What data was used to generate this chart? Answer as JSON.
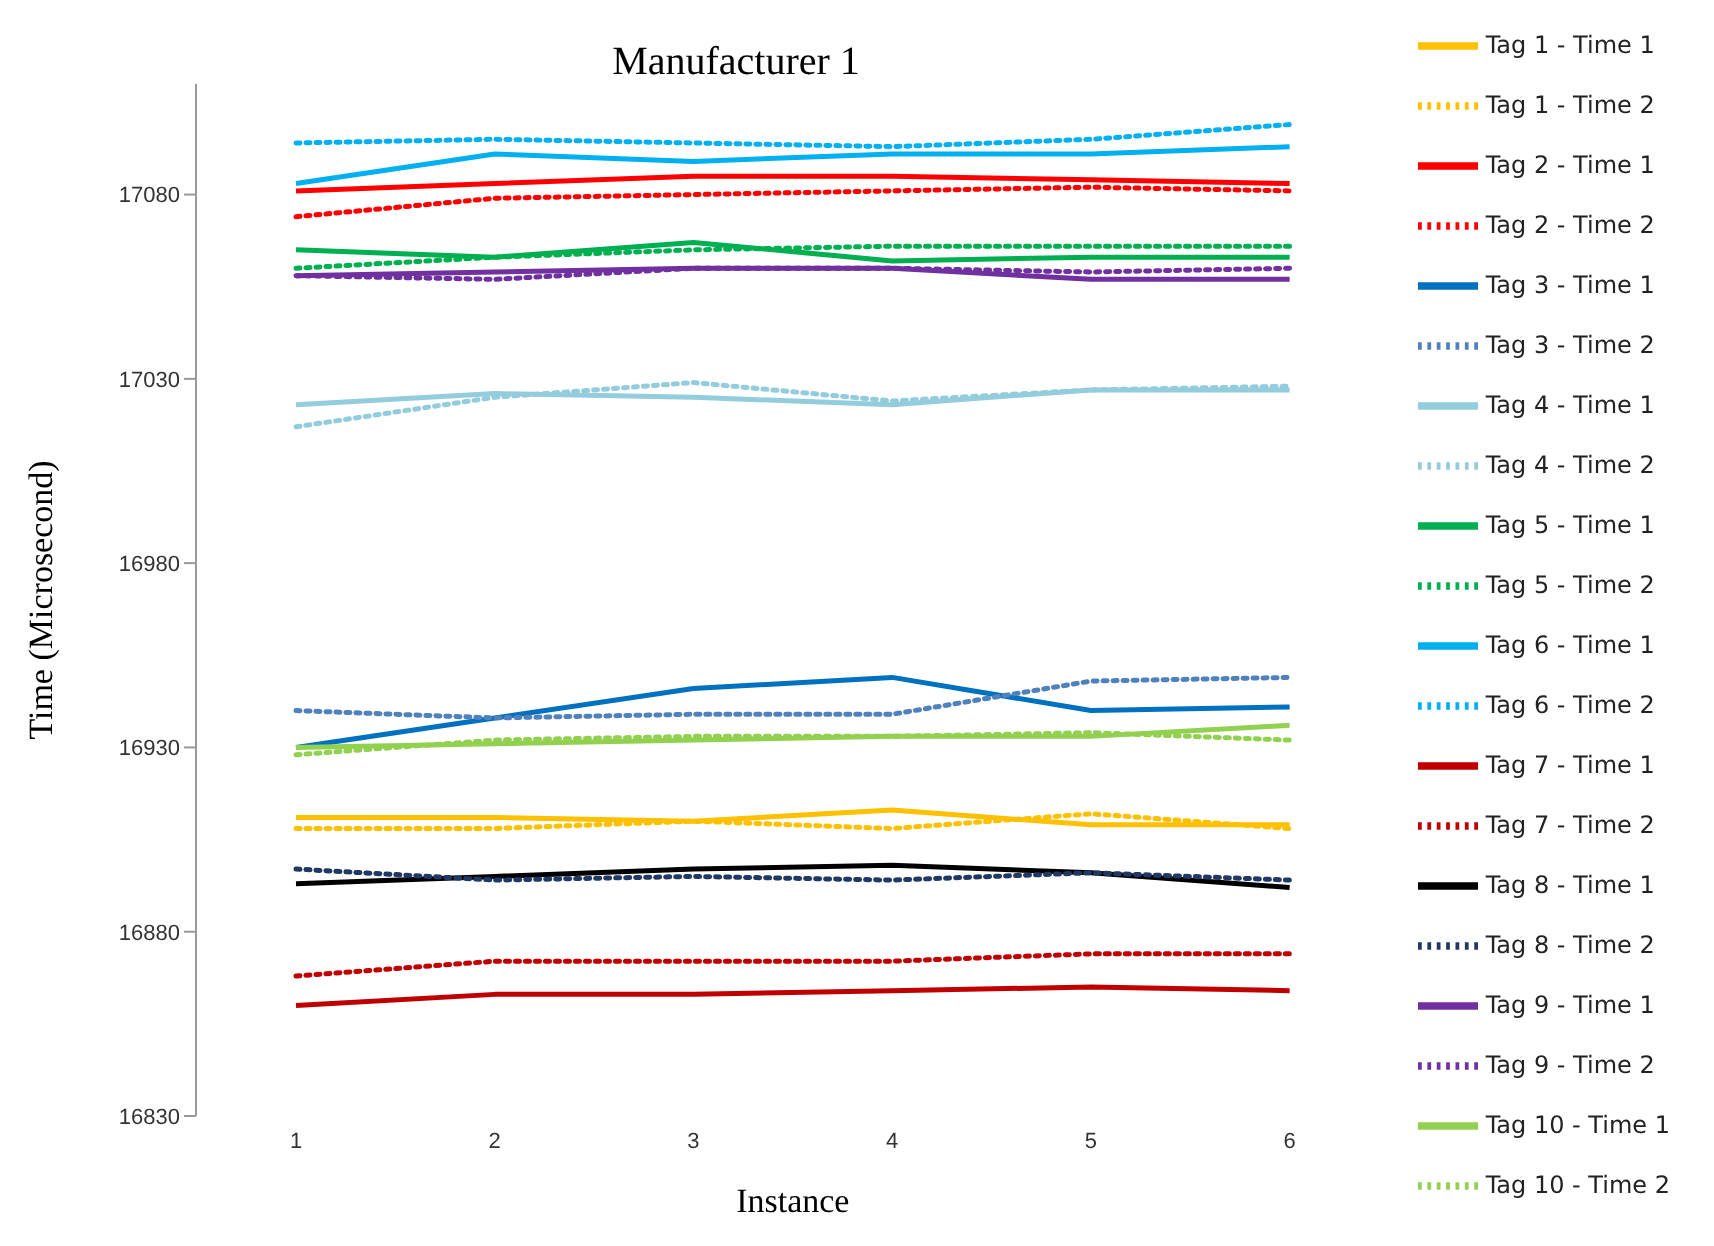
{
  "chart_data": {
    "type": "line",
    "title": "Manufacturer 1",
    "xlabel": "Instance",
    "ylabel": "Time (Microsecond)",
    "categories": [
      "1",
      "2",
      "3",
      "4",
      "5",
      "6"
    ],
    "ylim": [
      16830,
      17110
    ],
    "yticks": [
      16830,
      16880,
      16930,
      16980,
      17030,
      17080
    ],
    "grid": false,
    "legend": "right",
    "marker": "none",
    "series": [
      {
        "name": "Tag 1 - Time 1",
        "color": "#ffc000",
        "line_style": "solid",
        "values": [
          16911,
          16911,
          16910,
          16913,
          16909,
          16909
        ]
      },
      {
        "name": "Tag 1 - Time 2",
        "color": "#ffc000",
        "line_style": "dotted",
        "values": [
          16908,
          16908,
          16910,
          16908,
          16912,
          16908
        ]
      },
      {
        "name": "Tag 2 - Time 1",
        "color": "#ff0000",
        "line_style": "solid",
        "values": [
          17081,
          17083,
          17085,
          17085,
          17084,
          17083
        ]
      },
      {
        "name": "Tag 2 - Time 2",
        "color": "#ff0000",
        "line_style": "dotted",
        "values": [
          17074,
          17079,
          17080,
          17081,
          17082,
          17081
        ]
      },
      {
        "name": "Tag 3 - Time 1",
        "color": "#0070c0",
        "line_style": "solid",
        "values": [
          16930,
          16938,
          16946,
          16949,
          16940,
          16941
        ]
      },
      {
        "name": "Tag 3 - Time 2",
        "color": "#4f81bd",
        "line_style": "dotted",
        "values": [
          16940,
          16938,
          16939,
          16939,
          16948,
          16949
        ]
      },
      {
        "name": "Tag 4 - Time 1",
        "color": "#93cddd",
        "line_style": "solid",
        "values": [
          17023,
          17026,
          17025,
          17023,
          17027,
          17027
        ]
      },
      {
        "name": "Tag 4 - Time 2",
        "color": "#93cddd",
        "line_style": "dotted",
        "values": [
          17017,
          17025,
          17029,
          17024,
          17027,
          17028
        ]
      },
      {
        "name": "Tag 5 - Time 1",
        "color": "#00b050",
        "line_style": "solid",
        "values": [
          17065,
          17063,
          17067,
          17062,
          17063,
          17063
        ]
      },
      {
        "name": "Tag 5 - Time 2",
        "color": "#00b050",
        "line_style": "dotted",
        "values": [
          17060,
          17063,
          17065,
          17066,
          17066,
          17066
        ]
      },
      {
        "name": "Tag 6 - Time 1",
        "color": "#00b0f0",
        "line_style": "solid",
        "values": [
          17083,
          17091,
          17089,
          17091,
          17091,
          17093
        ]
      },
      {
        "name": "Tag 6 - Time 2",
        "color": "#00b0f0",
        "line_style": "dotted",
        "values": [
          17094,
          17095,
          17094,
          17093,
          17095,
          17099
        ]
      },
      {
        "name": "Tag 7 - Time 1",
        "color": "#c00000",
        "line_style": "solid",
        "values": [
          16860,
          16863,
          16863,
          16864,
          16865,
          16864
        ]
      },
      {
        "name": "Tag 7 - Time 2",
        "color": "#c00000",
        "line_style": "dotted",
        "values": [
          16868,
          16872,
          16872,
          16872,
          16874,
          16874
        ]
      },
      {
        "name": "Tag 8 - Time 1",
        "color": "#000000",
        "line_style": "solid",
        "values": [
          16893,
          16895,
          16897,
          16898,
          16896,
          16892
        ]
      },
      {
        "name": "Tag 8 - Time 2",
        "color": "#1f3864",
        "line_style": "dotted",
        "values": [
          16897,
          16894,
          16895,
          16894,
          16896,
          16894
        ]
      },
      {
        "name": "Tag 9 - Time 1",
        "color": "#7030a0",
        "line_style": "solid",
        "values": [
          17058,
          17059,
          17060,
          17060,
          17057,
          17057
        ]
      },
      {
        "name": "Tag 9 - Time 2",
        "color": "#7030a0",
        "line_style": "dotted",
        "values": [
          17058,
          17057,
          17060,
          17060,
          17059,
          17060
        ]
      },
      {
        "name": "Tag 10 - Time 1",
        "color": "#92d050",
        "line_style": "solid",
        "values": [
          16930,
          16931,
          16932,
          16933,
          16933,
          16936
        ]
      },
      {
        "name": "Tag 10 - Time 2",
        "color": "#92d050",
        "line_style": "dotted",
        "values": [
          16928,
          16932,
          16933,
          16933,
          16934,
          16932
        ]
      }
    ]
  }
}
